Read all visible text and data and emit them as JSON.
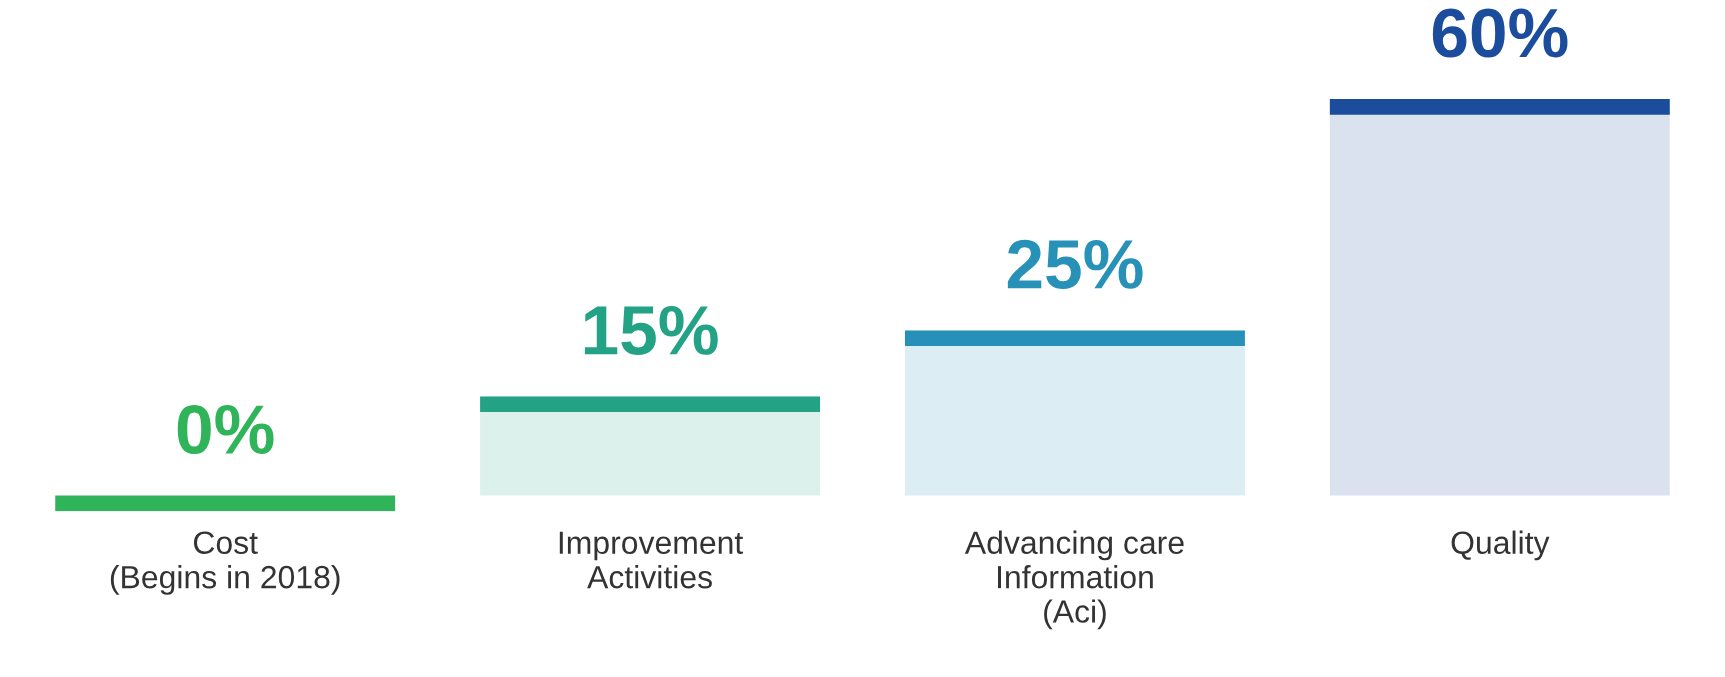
{
  "chart_data": {
    "type": "bar",
    "categories": [
      "Cost\n(Begins in 2018)",
      "Improvement\nActivities",
      "Advancing care\nInformation\n(Aci)",
      "Quality"
    ],
    "values": [
      0,
      15,
      25,
      60
    ],
    "colors": [
      "#2fb45a",
      "#23a286",
      "#2791b8",
      "#1c4d9c"
    ],
    "data_labels": true,
    "value_labels": [
      "0%",
      "15%",
      "25%",
      "60%"
    ],
    "grid": false,
    "legend": false
  }
}
